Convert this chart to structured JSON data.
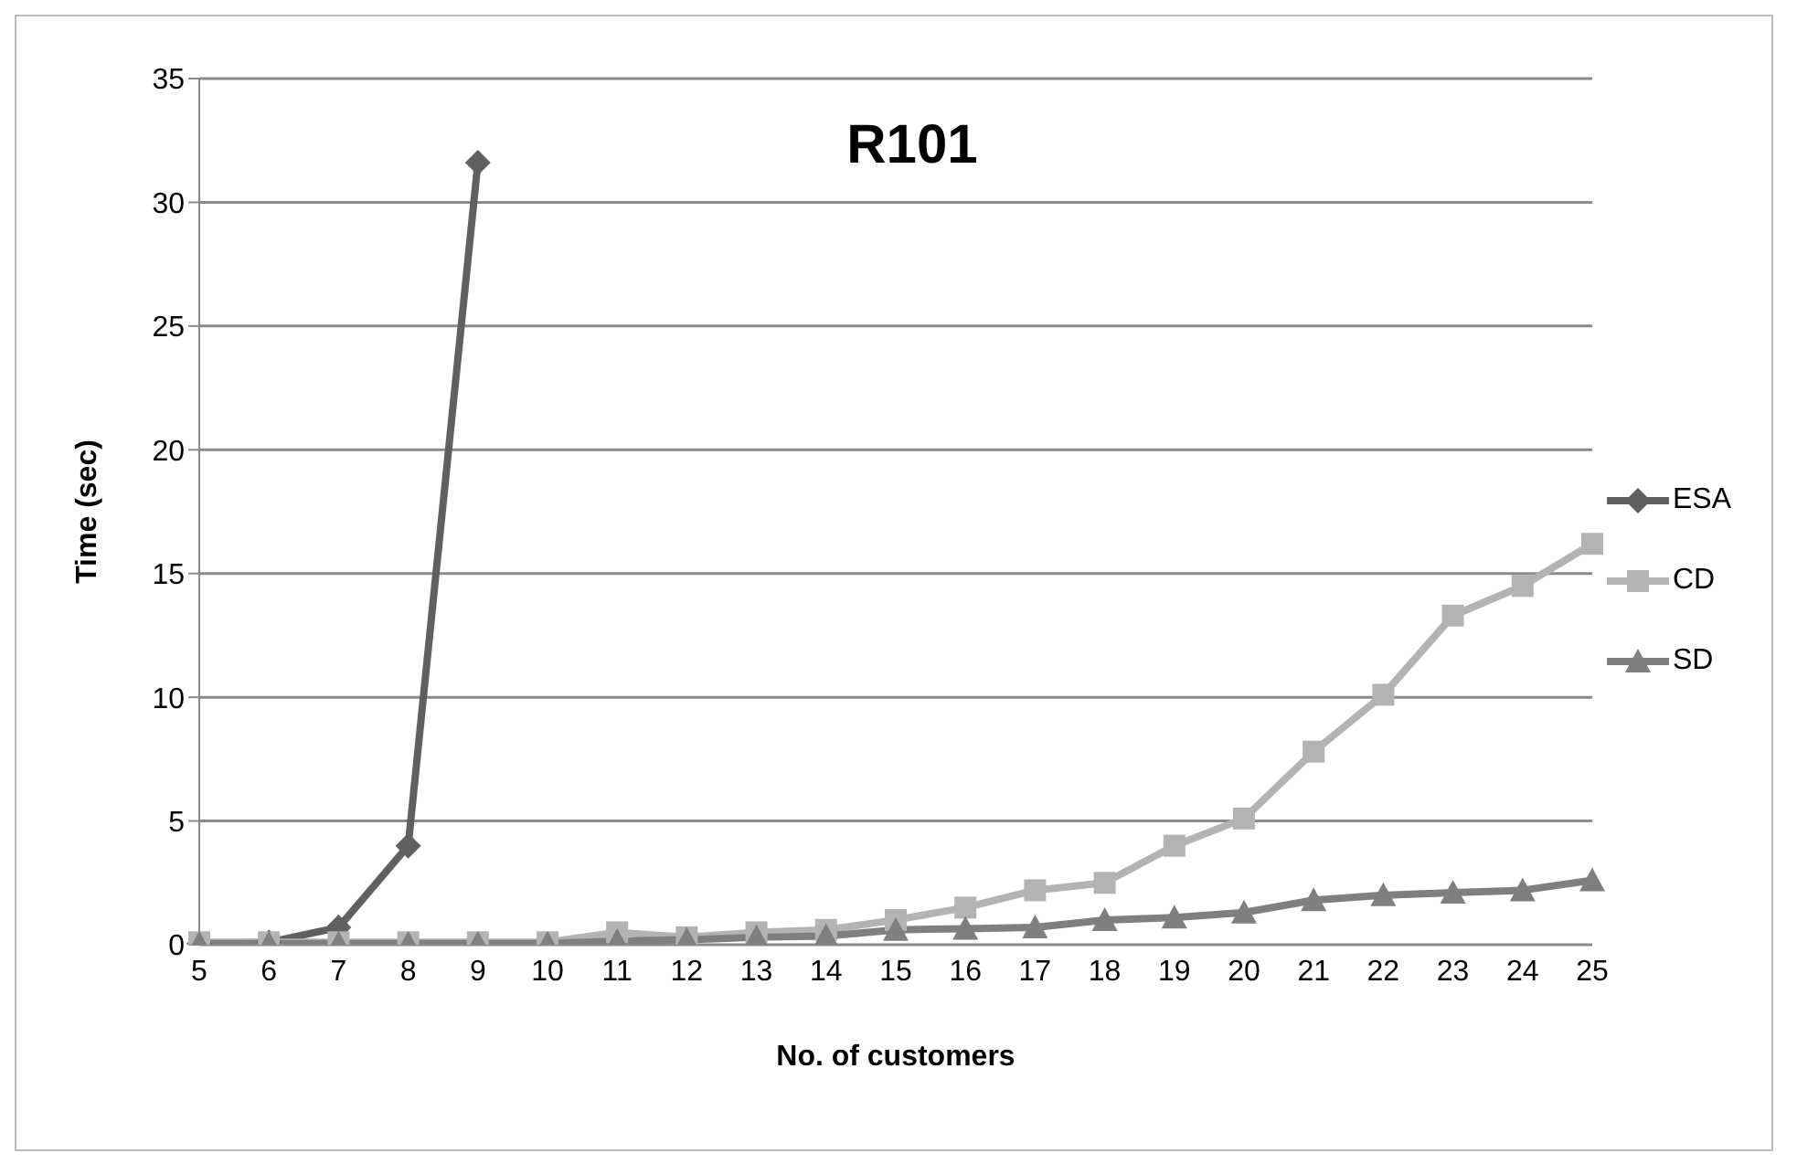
{
  "chart_data": {
    "type": "line",
    "title": "R101",
    "xlabel": "No. of customers",
    "ylabel": "Time (sec)",
    "categories": [
      "5",
      "6",
      "7",
      "8",
      "9",
      "10",
      "11",
      "12",
      "13",
      "14",
      "15",
      "16",
      "17",
      "18",
      "19",
      "20",
      "21",
      "22",
      "23",
      "24",
      "25"
    ],
    "series": [
      {
        "name": "ESA",
        "color": "#606060",
        "marker": "diamond",
        "values": [
          0.05,
          0.1,
          0.7,
          4.0,
          31.6,
          null,
          null,
          null,
          null,
          null,
          null,
          null,
          null,
          null,
          null,
          null,
          null,
          null,
          null,
          null,
          null
        ]
      },
      {
        "name": "CD",
        "color": "#b3b3b3",
        "marker": "square",
        "values": [
          0.1,
          0.1,
          0.1,
          0.1,
          0.1,
          0.1,
          0.5,
          0.3,
          0.5,
          0.6,
          1.0,
          1.5,
          2.2,
          2.5,
          4.0,
          5.1,
          7.8,
          10.1,
          13.3,
          14.5,
          16.2
        ]
      },
      {
        "name": "SD",
        "color": "#7f7f7f",
        "marker": "triangle",
        "values": [
          0.05,
          0.05,
          0.05,
          0.05,
          0.05,
          0.05,
          0.15,
          0.2,
          0.3,
          0.35,
          0.6,
          0.65,
          0.7,
          1.0,
          1.1,
          1.3,
          1.8,
          2.0,
          2.1,
          2.2,
          2.6
        ]
      }
    ],
    "ylim": [
      0,
      35
    ],
    "yticks": [
      0,
      5,
      10,
      15,
      20,
      25,
      30,
      35
    ],
    "grid": "y",
    "legend": "right"
  }
}
